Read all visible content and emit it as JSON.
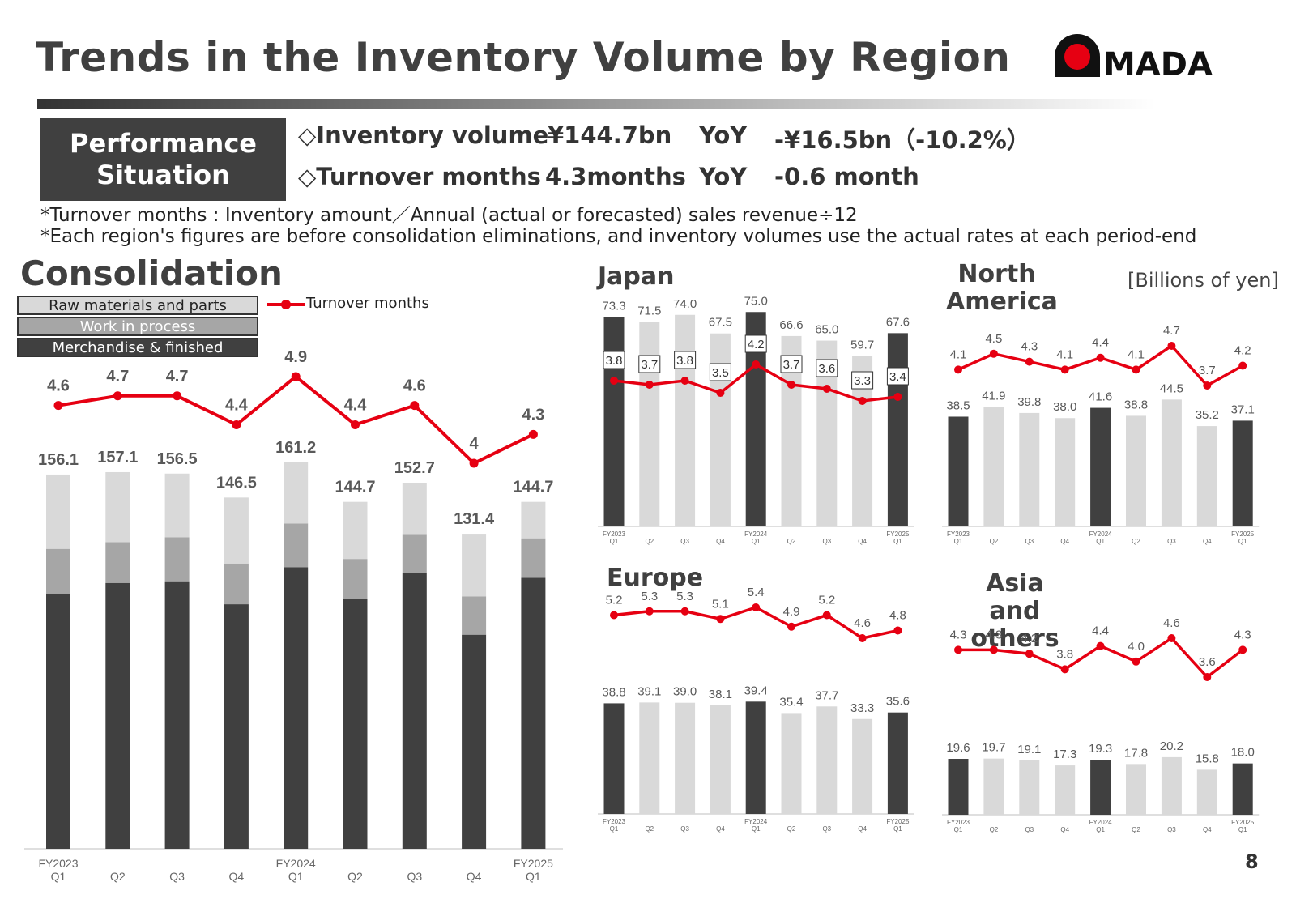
{
  "page": {
    "title": "Trends in the Inventory Volume by Region",
    "logo_text": "AMADA",
    "page_number": "8",
    "unit_label": "[Billions of yen]"
  },
  "performance": {
    "box_line1": "Performance",
    "box_line2": "Situation",
    "rows": [
      {
        "label": "◇Inventory volume",
        "value": "¥144.7bn",
        "yoy": "YoY",
        "change": "-¥16.5bn（-10.2%）"
      },
      {
        "label": "◇Turnover months",
        "value": "4.3months",
        "yoy": "YoY",
        "change": "-0.6 month"
      }
    ]
  },
  "notes": [
    "*Turnover months : Inventory amount／Annual (actual or forecasted) sales revenue÷12",
    "*Each region's figures are before consolidation eliminations, and inventory volumes use the actual rates at each period-end"
  ],
  "colors": {
    "dark": "#404040",
    "mid": "#a6a6a6",
    "light": "#d9d9d9",
    "red": "#e60012"
  },
  "chart_data": [
    {
      "type": "bar",
      "title": "Consolidation",
      "stacked": true,
      "categories": [
        "FY2023 Q1",
        "Q2",
        "Q3",
        "Q4",
        "FY2024 Q1",
        "Q2",
        "Q3",
        "Q4",
        "FY2025 Q1"
      ],
      "series": [
        {
          "name": "Merchandise & finished products",
          "values": [
            106.5,
            110.9,
            111.6,
            102.0,
            117.4,
            104.2,
            115.0,
            89.3,
            113.0
          ]
        },
        {
          "name": "Work in process",
          "values": [
            18.6,
            17.0,
            18.3,
            17.0,
            18.3,
            16.7,
            16.3,
            16.0,
            16.5
          ]
        },
        {
          "name": "Raw materials and parts",
          "values": [
            31.0,
            29.2,
            26.6,
            27.5,
            25.5,
            23.8,
            21.4,
            26.1,
            15.2
          ]
        }
      ],
      "totals": [
        "156.1",
        "157.1",
        "156.5",
        "146.5",
        "161.2",
        "144.7",
        "152.7",
        "131.4",
        "144.7"
      ],
      "line": {
        "name": "Turnover months",
        "values": [
          4.6,
          4.7,
          4.7,
          4.4,
          4.9,
          4.4,
          4.6,
          4.0,
          4.3
        ],
        "labels": [
          "4.6",
          "4.7",
          "4.7",
          "4.4",
          "4.9",
          "4.4",
          "4.6",
          "4",
          "4.3"
        ]
      },
      "legend": "top-left"
    },
    {
      "type": "bar",
      "title": "Japan",
      "categories": [
        "FY2023 Q1",
        "Q2",
        "Q3",
        "Q4",
        "FY2024 Q1",
        "Q2",
        "Q3",
        "Q4",
        "FY2025 Q1"
      ],
      "values": [
        73.3,
        71.5,
        74.0,
        67.5,
        75.0,
        66.6,
        65.0,
        59.7,
        67.6
      ],
      "value_labels": [
        "73.3",
        "71.5",
        "74.0",
        "67.5",
        "75.0",
        "66.6",
        "65.0",
        "59.7",
        "67.6"
      ],
      "line": {
        "name": "Turnover months",
        "values": [
          3.8,
          3.7,
          3.8,
          3.5,
          4.2,
          3.7,
          3.6,
          3.3,
          3.4
        ],
        "labels": [
          "3.8",
          "3.7",
          "3.8",
          "3.5",
          "4.2",
          "3.7",
          "3.6",
          "3.3",
          "3.4"
        ]
      }
    },
    {
      "type": "bar",
      "title": "North America",
      "categories": [
        "FY2023 Q1",
        "Q2",
        "Q3",
        "Q4",
        "FY2024 Q1",
        "Q2",
        "Q3",
        "Q4",
        "FY2025 Q1"
      ],
      "values": [
        38.5,
        41.9,
        39.8,
        38.0,
        41.6,
        38.8,
        44.5,
        35.2,
        37.1
      ],
      "value_labels": [
        "38.5",
        "41.9",
        "39.8",
        "38.0",
        "41.6",
        "38.8",
        "44.5",
        "35.2",
        "37.1"
      ],
      "line": {
        "name": "Turnover months",
        "values": [
          4.1,
          4.5,
          4.3,
          4.1,
          4.4,
          4.1,
          4.7,
          3.7,
          4.2
        ],
        "labels": [
          "4.1",
          "4.5",
          "4.3",
          "4.1",
          "4.4",
          "4.1",
          "4.7",
          "3.7",
          "4.2"
        ]
      }
    },
    {
      "type": "bar",
      "title": "Europe",
      "categories": [
        "FY2023 Q1",
        "Q2",
        "Q3",
        "Q4",
        "FY2024 Q1",
        "Q2",
        "Q3",
        "Q4",
        "FY2025 Q1"
      ],
      "values": [
        38.8,
        39.1,
        39.0,
        38.1,
        39.4,
        35.4,
        37.7,
        33.3,
        35.6
      ],
      "value_labels": [
        "38.8",
        "39.1",
        "39.0",
        "38.1",
        "39.4",
        "35.4",
        "37.7",
        "33.3",
        "35.6"
      ],
      "line": {
        "name": "Turnover months",
        "values": [
          5.2,
          5.3,
          5.3,
          5.1,
          5.4,
          4.9,
          5.2,
          4.6,
          4.8
        ],
        "labels": [
          "5.2",
          "5.3",
          "5.3",
          "5.1",
          "5.4",
          "4.9",
          "5.2",
          "4.6",
          "4.8"
        ]
      }
    },
    {
      "type": "bar",
      "title": "Asia and others",
      "categories": [
        "FY2023 Q1",
        "Q2",
        "Q3",
        "Q4",
        "FY2024 Q1",
        "Q2",
        "Q3",
        "Q4",
        "FY2025 Q1"
      ],
      "values": [
        19.6,
        19.7,
        19.1,
        17.3,
        19.3,
        17.8,
        20.2,
        15.8,
        18.0
      ],
      "value_labels": [
        "19.6",
        "19.7",
        "19.1",
        "17.3",
        "19.3",
        "17.8",
        "20.2",
        "15.8",
        "18.0"
      ],
      "line": {
        "name": "Turnover months",
        "values": [
          4.3,
          4.3,
          4.2,
          3.8,
          4.4,
          4.0,
          4.6,
          3.6,
          4.3
        ],
        "labels": [
          "4.3",
          "4.3",
          "4.2",
          "3.8",
          "4.4",
          "4.0",
          "4.6",
          "3.6",
          "4.3"
        ]
      }
    }
  ]
}
